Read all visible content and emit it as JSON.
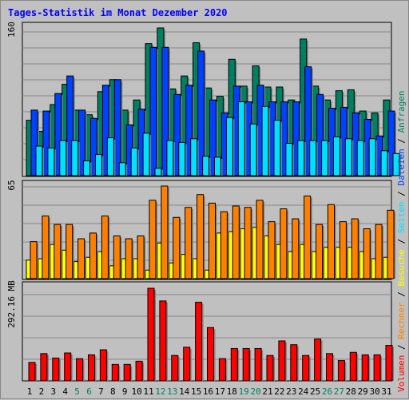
{
  "chart_data": {
    "type": "bar",
    "title": "Tages-Statistik im Monat Dezember 2020",
    "categories": [
      "1",
      "2",
      "3",
      "4",
      "5",
      "6",
      "7",
      "8",
      "9",
      "10",
      "11",
      "12",
      "13",
      "14",
      "15",
      "16",
      "17",
      "18",
      "19",
      "20",
      "21",
      "22",
      "23",
      "24",
      "25",
      "26",
      "27",
      "28",
      "29",
      "30",
      "31"
    ],
    "weekend_categories": [
      "5",
      "6",
      "12",
      "13",
      "19",
      "20",
      "26",
      "27"
    ],
    "panels": [
      {
        "name": "top",
        "max_label": "160",
        "ymax": 160,
        "series": [
          {
            "name": "Anfragen",
            "color": "#008060",
            "values": [
              60,
              48,
              77,
              99,
              71,
              66,
              91,
              104,
              71,
              82,
              143,
              160,
              94,
              108,
              144,
              95,
              86,
              126,
              97,
              119,
              96,
              96,
              82,
              148,
              97,
              82,
              92,
              93,
              70,
              68,
              82
            ]
          },
          {
            "name": "Dateien",
            "color": "#0040ff",
            "values": [
              71,
              70,
              89,
              108,
              71,
              62,
              98,
              104,
              55,
              72,
              139,
              139,
              88,
              98,
              135,
              82,
              68,
              97,
              80,
              98,
              80,
              80,
              80,
              118,
              88,
              73,
              74,
              68,
              61,
              43,
              70
            ]
          },
          {
            "name": "Seiten",
            "color": "#00e0ff",
            "values": [
              32,
              30,
              38,
              38,
              16,
              23,
              41,
              14,
              30,
              46,
              8,
              38,
              36,
              40,
              21,
              20,
              63,
              80,
              56,
              75,
              60,
              35,
              38,
              38,
              38,
              42,
              40,
              38,
              40,
              27,
              24
            ]
          }
        ]
      },
      {
        "name": "middle",
        "max_label": "65",
        "ymax": 65,
        "series": [
          {
            "name": "Besuche",
            "color": "#ffff00",
            "values": [
              13,
              14,
              24,
              20,
              12,
              15,
              19,
              9,
              14,
              14,
              6,
              25,
              11,
              17,
              14,
              6,
              32,
              33,
              35,
              36,
              30,
              24,
              19,
              24,
              19,
              22,
              22,
              22,
              19,
              14,
              15
            ]
          },
          {
            "name": "Rechner",
            "color": "#ff8000",
            "values": [
              26,
              44,
              38,
              38,
              28,
              32,
              44,
              30,
              28,
              30,
              55,
              65,
              43,
              50,
              59,
              53,
              47,
              51,
              50,
              55,
              40,
              49,
              42,
              58,
              38,
              52,
              40,
              42,
              35,
              38,
              48
            ]
          }
        ]
      },
      {
        "name": "bottom",
        "max_label": "292.16 MB",
        "ymax": 292.16,
        "series": [
          {
            "name": "Volumen",
            "color": "#ff0000",
            "values": [
              58,
              86,
              72,
              88,
              70,
              82,
              98,
              52,
              52,
              62,
              292,
              252,
              80,
              106,
              248,
              168,
              70,
              102,
              102,
              102,
              80,
              126,
              114,
              80,
              132,
              86,
              64,
              90,
              82,
              82,
              112
            ]
          }
        ]
      }
    ],
    "right_legend": [
      {
        "name": "Volumen",
        "color": "#ff0000"
      },
      {
        "name": "Rechner",
        "color": "#ff8000"
      },
      {
        "name": "Besuche",
        "color": "#ffff00"
      },
      {
        "name": "Seiten",
        "color": "#00e0ff"
      },
      {
        "name": "Dateien",
        "color": "#0040ff"
      },
      {
        "name": "Anfragen",
        "color": "#008060"
      }
    ],
    "colors": {
      "title": "#0000ff",
      "weekend_tick": "#008060",
      "weekday_tick": "#000000",
      "legend_separator": "#000000"
    },
    "grid": true
  }
}
